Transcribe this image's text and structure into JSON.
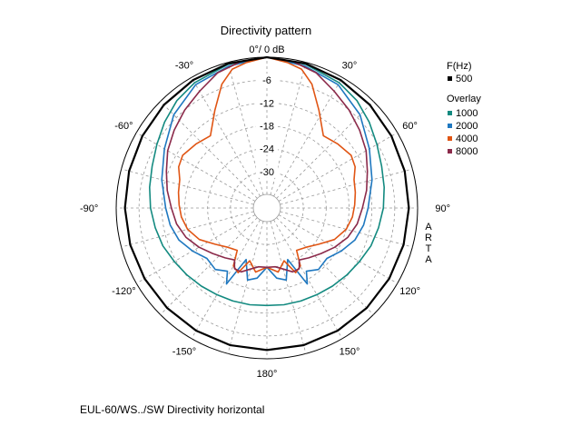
{
  "chart_data": {
    "type": "polar",
    "title": "Directivity pattern",
    "zero_label": "0°/ 0 dB",
    "angle_labels": [
      {
        "deg": -30,
        "text": "-30°"
      },
      {
        "deg": 30,
        "text": "30°"
      },
      {
        "deg": -60,
        "text": "-60°"
      },
      {
        "deg": 60,
        "text": "60°"
      },
      {
        "deg": -90,
        "text": "-90°"
      },
      {
        "deg": 90,
        "text": "90°"
      },
      {
        "deg": -120,
        "text": "-120°"
      },
      {
        "deg": 120,
        "text": "120°"
      },
      {
        "deg": -150,
        "text": "-150°"
      },
      {
        "deg": 150,
        "text": "150°"
      },
      {
        "deg": 180,
        "text": "180°"
      }
    ],
    "db_rings": [
      {
        "db": -6,
        "text": "-6"
      },
      {
        "db": -12,
        "text": "-12"
      },
      {
        "db": -18,
        "text": "-18"
      },
      {
        "db": -24,
        "text": "-24"
      },
      {
        "db": -30,
        "text": "-30"
      }
    ],
    "r_range_db": [
      -36,
      0
    ],
    "side_label": "ARTA",
    "legend": {
      "freq_title": "F(Hz)",
      "overlay_title": "Overlay",
      "placement": "right"
    },
    "series": [
      {
        "name": "500",
        "color": "#000000",
        "group": "main",
        "points": [
          [
            0,
            0
          ],
          [
            15,
            -0.3
          ],
          [
            30,
            -0.8
          ],
          [
            45,
            -1.3
          ],
          [
            60,
            -1.8
          ],
          [
            75,
            -2.1
          ],
          [
            90,
            -2.3
          ],
          [
            105,
            -2.4
          ],
          [
            120,
            -2.5
          ],
          [
            135,
            -2.5
          ],
          [
            150,
            -2.4
          ],
          [
            165,
            -2.3
          ],
          [
            180,
            -2.3
          ]
        ]
      },
      {
        "name": "1000",
        "color": "#138a80",
        "group": "overlay",
        "points": [
          [
            0,
            0
          ],
          [
            15,
            -0.5
          ],
          [
            30,
            -1.6
          ],
          [
            40,
            -2.8
          ],
          [
            50,
            -4.5
          ],
          [
            60,
            -6.2
          ],
          [
            70,
            -7.5
          ],
          [
            80,
            -8.3
          ],
          [
            90,
            -9
          ],
          [
            100,
            -9.8
          ],
          [
            110,
            -10.5
          ],
          [
            120,
            -11.5
          ],
          [
            130,
            -12.2
          ],
          [
            140,
            -12.8
          ],
          [
            150,
            -13.3
          ],
          [
            160,
            -13.6
          ],
          [
            170,
            -13.8
          ],
          [
            180,
            -14
          ]
        ]
      },
      {
        "name": "2000",
        "color": "#1f78c0",
        "group": "overlay",
        "points": [
          [
            0,
            0
          ],
          [
            15,
            -1
          ],
          [
            30,
            -2.2
          ],
          [
            45,
            -5
          ],
          [
            60,
            -8.5
          ],
          [
            75,
            -11
          ],
          [
            90,
            -13
          ],
          [
            100,
            -13.8
          ],
          [
            110,
            -15
          ],
          [
            120,
            -17
          ],
          [
            130,
            -19
          ],
          [
            140,
            -18.5
          ],
          [
            148,
            -20
          ],
          [
            152,
            -17
          ],
          [
            158,
            -25
          ],
          [
            165,
            -20
          ],
          [
            172,
            -21
          ],
          [
            180,
            -24
          ]
        ]
      },
      {
        "name": "4000",
        "color": "#e05514",
        "group": "overlay",
        "points": [
          [
            0,
            0
          ],
          [
            8,
            -1
          ],
          [
            14,
            -2
          ],
          [
            20,
            -5
          ],
          [
            28,
            -10.5
          ],
          [
            38,
            -15.5
          ],
          [
            48,
            -14.5
          ],
          [
            58,
            -13.5
          ],
          [
            65,
            -14
          ],
          [
            72,
            -15.5
          ],
          [
            80,
            -16
          ],
          [
            88,
            -16.5
          ],
          [
            96,
            -17
          ],
          [
            105,
            -18
          ],
          [
            115,
            -20
          ],
          [
            125,
            -23
          ],
          [
            135,
            -25
          ],
          [
            145,
            -26
          ],
          [
            150,
            -22
          ],
          [
            156,
            -21
          ],
          [
            162,
            -25
          ],
          [
            170,
            -22.5
          ],
          [
            180,
            -24
          ]
        ]
      },
      {
        "name": "8000",
        "color": "#8b2a4a",
        "group": "overlay",
        "points": [
          [
            0,
            0
          ],
          [
            10,
            -0.5
          ],
          [
            20,
            -1.8
          ],
          [
            30,
            -4.2
          ],
          [
            40,
            -6
          ],
          [
            50,
            -7.8
          ],
          [
            60,
            -9.5
          ],
          [
            70,
            -11.5
          ],
          [
            80,
            -13
          ],
          [
            90,
            -14.5
          ],
          [
            100,
            -15.5
          ],
          [
            110,
            -17
          ],
          [
            120,
            -19
          ],
          [
            130,
            -21
          ],
          [
            140,
            -22.5
          ],
          [
            148,
            -23.5
          ],
          [
            152,
            -21.5
          ],
          [
            158,
            -21.5
          ],
          [
            165,
            -23
          ],
          [
            172,
            -24
          ],
          [
            180,
            -24
          ]
        ]
      }
    ]
  },
  "caption": "EUL-60/WS../SW Directivity horizontal"
}
